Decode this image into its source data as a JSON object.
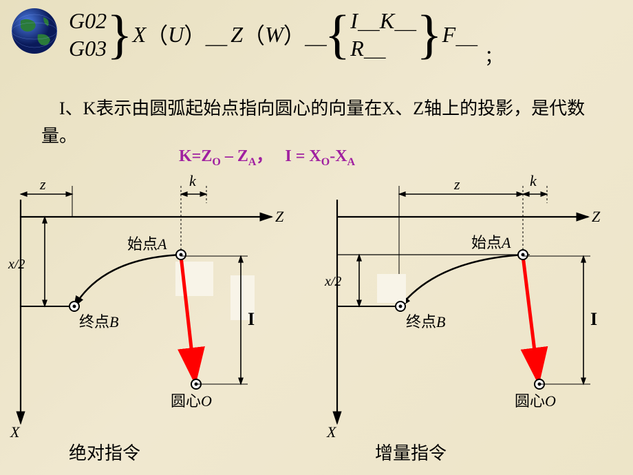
{
  "formula": {
    "g02": "G02",
    "g03": "G03",
    "X": "X",
    "U": "U",
    "Z": "Z",
    "W": "W",
    "I": "I",
    "K": "K",
    "R": "R",
    "F": "F",
    "semicolon": "；"
  },
  "explain": {
    "text": "I、K表示由圆弧起始点指向圆心的向量在X、Z轴上的投影，是代数量。"
  },
  "kformula": {
    "text_html": "K=Z<sub>O</sub> – Z<sub>A</sub>，&nbsp;&nbsp;&nbsp;I = X<sub>O</sub>-X<sub>A</sub>"
  },
  "diagram": {
    "axis_Z": "Z",
    "axis_X": "X",
    "label_z": "z",
    "label_k": "k",
    "label_x2": "x/2",
    "label_I": "I",
    "startA": "始点",
    "A": "A",
    "endB": "终点",
    "B": "B",
    "centerO": "圆心",
    "O": "O",
    "white_box_color": "#f8f4e8",
    "line_color": "#000000",
    "red_color": "#ff0000",
    "globe_land": "#2a7a3a",
    "globe_sea": "#1a3a8a",
    "stroke_width": 2.2,
    "arrow_size": 10
  },
  "captions": {
    "left": "绝对指令",
    "right": "增量指令"
  }
}
